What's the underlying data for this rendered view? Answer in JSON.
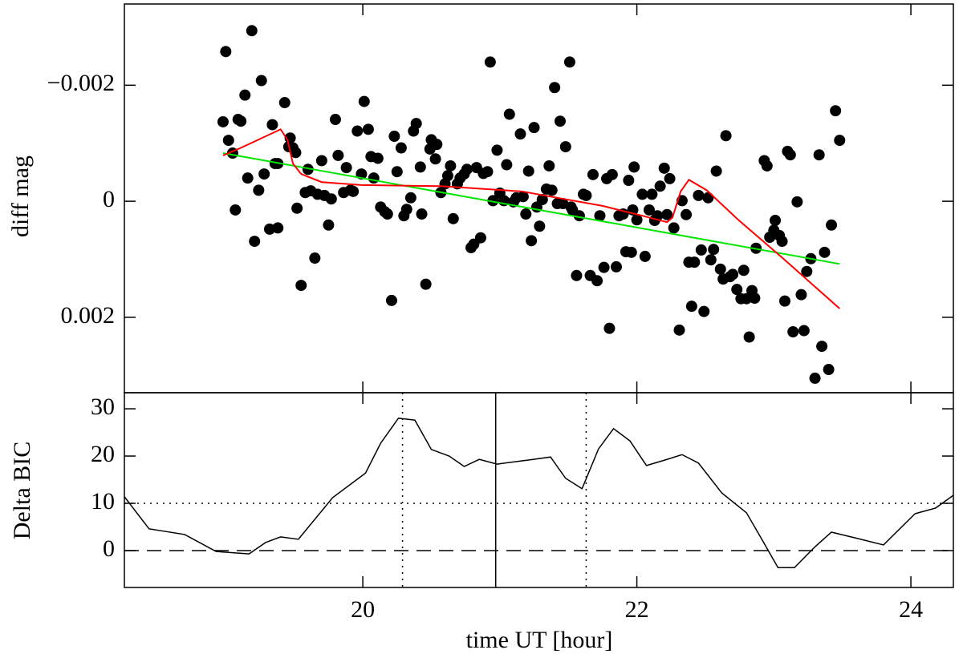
{
  "chart_data": [
    {
      "type": "scatter",
      "ylabel": "diff mag",
      "xlim": [
        18.26,
        24.31
      ],
      "xticks": [
        20,
        22,
        24
      ],
      "ylim": [
        0.0033,
        -0.0034
      ],
      "yticks": [
        {
          "value": -0.002,
          "label": "−0.002"
        },
        0,
        0.002
      ],
      "points": {
        "color": "#000000",
        "x": [
          18.98,
          19.0,
          19.02,
          19.05,
          19.07,
          19.09,
          19.11,
          19.14,
          19.16,
          19.19,
          19.21,
          19.24,
          19.26,
          19.28,
          19.32,
          19.34,
          19.36,
          19.38,
          19.38,
          19.43,
          19.46,
          19.47,
          19.49,
          19.51,
          19.52,
          19.55,
          19.58,
          19.6,
          19.62,
          19.65,
          19.67,
          19.7,
          19.72,
          19.75,
          19.77,
          19.8,
          19.82,
          19.86,
          19.88,
          19.91,
          19.93,
          19.96,
          19.99,
          20.01,
          20.04,
          20.06,
          20.08,
          20.11,
          20.13,
          20.16,
          20.18,
          20.21,
          20.23,
          20.25,
          20.28,
          20.3,
          20.32,
          20.35,
          20.37,
          20.39,
          20.42,
          20.43,
          20.46,
          20.49,
          20.5,
          20.53,
          20.54,
          20.57,
          20.6,
          20.62,
          20.64,
          20.66,
          20.69,
          20.71,
          20.74,
          20.76,
          20.79,
          20.81,
          20.83,
          20.86,
          20.88,
          20.91,
          20.93,
          20.95,
          20.98,
          21.0,
          21.03,
          21.05,
          21.07,
          21.1,
          21.12,
          21.15,
          21.17,
          21.19,
          21.21,
          21.23,
          21.25,
          21.27,
          21.29,
          21.31,
          21.34,
          21.36,
          21.38,
          21.4,
          21.42,
          21.44,
          21.46,
          21.48,
          21.51,
          21.52,
          21.53,
          21.56,
          21.58,
          21.61,
          21.63,
          21.66,
          21.68,
          21.71,
          21.73,
          21.76,
          21.78,
          21.8,
          21.82,
          21.85,
          21.87,
          21.9,
          21.92,
          21.94,
          21.96,
          21.97,
          21.98,
          22.0,
          22.04,
          22.06,
          22.09,
          22.11,
          22.13,
          22.15,
          22.17,
          22.2,
          22.22,
          22.24,
          22.27,
          22.31,
          22.33,
          22.36,
          22.38,
          22.4,
          22.42,
          22.45,
          22.47,
          22.49,
          22.52,
          22.54,
          22.56,
          22.58,
          22.61,
          22.63,
          22.65,
          22.68,
          22.7,
          22.73,
          22.76,
          22.78,
          22.8,
          22.82,
          22.84,
          22.86,
          22.87,
          22.93,
          22.95,
          22.97,
          23.0,
          23.01,
          23.04,
          23.06,
          23.08,
          23.1,
          23.12,
          23.14,
          23.17,
          23.2,
          23.22,
          23.24,
          23.27,
          23.3,
          23.33,
          23.35,
          23.37,
          23.4,
          23.42,
          23.45,
          23.48
        ],
        "y": [
          -0.00137,
          -0.00258,
          -0.00105,
          -0.00083,
          0.00015,
          -0.00141,
          -0.00138,
          -0.00183,
          -0.0004,
          -0.00294,
          0.00069,
          -0.00019,
          -0.00208,
          -0.00047,
          0.00048,
          -0.00132,
          -0.00065,
          -0.00065,
          0.00046,
          -0.0017,
          -0.00094,
          -0.00109,
          -0.00092,
          -0.00084,
          0.00012,
          0.00145,
          -0.00015,
          -0.00055,
          -0.00018,
          0.00098,
          -0.00012,
          -0.0007,
          -0.0001,
          0.00041,
          -4e-05,
          -0.00141,
          -0.00079,
          -0.00015,
          -0.00058,
          -0.00019,
          -0.00017,
          -0.00121,
          -0.00047,
          -0.00172,
          -0.00124,
          -0.00077,
          -0.0004,
          -0.00074,
          0.0001,
          0.00018,
          0.00022,
          0.00171,
          -0.00112,
          -0.00051,
          -0.00092,
          0.00025,
          0.00014,
          -6e-05,
          -0.00121,
          -0.00134,
          -0.00059,
          0.00022,
          0.00143,
          -0.0009,
          -0.00106,
          -0.00073,
          -0.00098,
          -0.00015,
          -0.0003,
          -0.00044,
          -0.00061,
          0.0003,
          -0.0003,
          -0.0004,
          -0.00047,
          -0.00055,
          0.0008,
          0.00074,
          -0.00058,
          0.00063,
          -0.00048,
          -0.00051,
          -0.0024,
          -1e-05,
          -0.00088,
          -0.00014,
          -1e-05,
          -0.00063,
          -0.0015,
          1e-05,
          -6e-05,
          -0.00116,
          -8e-05,
          0.00022,
          -0.00052,
          0.00068,
          -0.00127,
          0.0001,
          0.00043,
          -3e-05,
          -0.00021,
          -0.00061,
          -0.00019,
          -0.00196,
          4e-05,
          -0.00138,
          4e-05,
          -0.00094,
          -0.0024,
          0.0001,
          0.00015,
          0.00128,
          0.00025,
          -0.00012,
          -0.0001,
          0.00128,
          -0.00046,
          0.00137,
          0.00025,
          0.00114,
          -0.00039,
          0.00219,
          -0.00046,
          0.00113,
          0.00025,
          0.00022,
          0.00087,
          -0.00036,
          0.00088,
          0.00015,
          -0.00059,
          0.00032,
          -0.00012,
          0.00095,
          0.00015,
          -0.00012,
          0.00033,
          0.00025,
          -0.00026,
          -0.00057,
          0.00023,
          -0.00039,
          0.00046,
          0.00222,
          -1e-05,
          0.00023,
          0.00105,
          0.00181,
          0.00105,
          -0.0001,
          0.00084,
          0.0019,
          -6e-05,
          0.00101,
          0.00083,
          -0.00052,
          0.00117,
          0.00134,
          -0.00113,
          0.0013,
          0.00126,
          0.00152,
          0.00168,
          0.00119,
          0.00168,
          0.00234,
          0.00154,
          0.00167,
          0.00081,
          -0.0007,
          -0.00061,
          0.00062,
          0.0005,
          0.00033,
          0.00059,
          0.00069,
          0.00172,
          -0.00086,
          -0.0008,
          0.00225,
          1e-05,
          0.00161,
          0.00223,
          0.00121,
          0.00099,
          0.00305,
          -0.0008,
          0.0025,
          0.00088,
          0.0029,
          0.00041,
          -0.00156,
          -0.00105
        ]
      },
      "lines": [
        {
          "color": "#00e600",
          "x": [
            18.98,
            23.48
          ],
          "y": [
            -0.00083,
            0.00108
          ]
        },
        {
          "color": "#ff0000",
          "x": [
            18.98,
            19.11,
            19.4,
            19.45,
            19.49,
            19.55,
            19.7,
            19.99,
            20.57,
            21.16,
            21.75,
            22.04,
            22.22,
            22.26,
            22.32,
            22.38,
            22.51,
            22.74,
            23.06,
            23.48
          ],
          "y": [
            -0.00079,
            -0.00092,
            -0.00124,
            -0.00106,
            -0.00065,
            -0.00047,
            -0.00033,
            -0.00028,
            -0.00026,
            -0.00017,
            8e-05,
            0.00025,
            0.00036,
            0.00028,
            -0.00017,
            -0.00037,
            -0.00019,
            0.00032,
            0.00097,
            0.00185
          ]
        }
      ]
    },
    {
      "type": "line",
      "xlabel": "time UT [hour]",
      "ylabel": "Delta BIC",
      "xlim": [
        18.26,
        24.31
      ],
      "xticks": [
        20,
        22,
        24
      ],
      "ylim": [
        -7.8,
        33.4
      ],
      "yticks": [
        0,
        10,
        20,
        30
      ],
      "series": [
        {
          "color": "#000000",
          "x": [
            18.26,
            18.44,
            18.7,
            18.93,
            19.17,
            19.29,
            19.4,
            19.53,
            19.78,
            20.02,
            20.13,
            20.26,
            20.38,
            20.5,
            20.63,
            20.74,
            20.85,
            20.98,
            21.22,
            21.37,
            21.48,
            21.6,
            21.72,
            21.83,
            21.95,
            22.07,
            22.21,
            22.33,
            22.45,
            22.62,
            22.8,
            22.92,
            23.03,
            23.15,
            23.3,
            23.42,
            23.62,
            23.8,
            24.03,
            24.18,
            24.31
          ],
          "y": [
            11.4,
            4.6,
            3.4,
            -0.2,
            -0.7,
            1.7,
            2.9,
            2.4,
            11.2,
            16.4,
            22.7,
            28.0,
            27.6,
            21.4,
            20.0,
            17.8,
            19.3,
            18.3,
            19.2,
            19.8,
            15.3,
            13.1,
            21.5,
            25.8,
            23.2,
            18.0,
            19.2,
            20.3,
            18.5,
            12.2,
            8.0,
            2.0,
            -3.6,
            -3.6,
            0.8,
            3.9,
            2.5,
            1.2,
            7.8,
            9.0,
            11.7
          ]
        }
      ],
      "hlines": [
        {
          "value": 10,
          "style": "dotted"
        },
        {
          "value": 0,
          "style": "dashed"
        }
      ],
      "vlines": [
        {
          "value": 20.29,
          "style": "dotted"
        },
        {
          "value": 20.97,
          "style": "solid"
        },
        {
          "value": 21.63,
          "style": "dotted"
        }
      ]
    }
  ]
}
